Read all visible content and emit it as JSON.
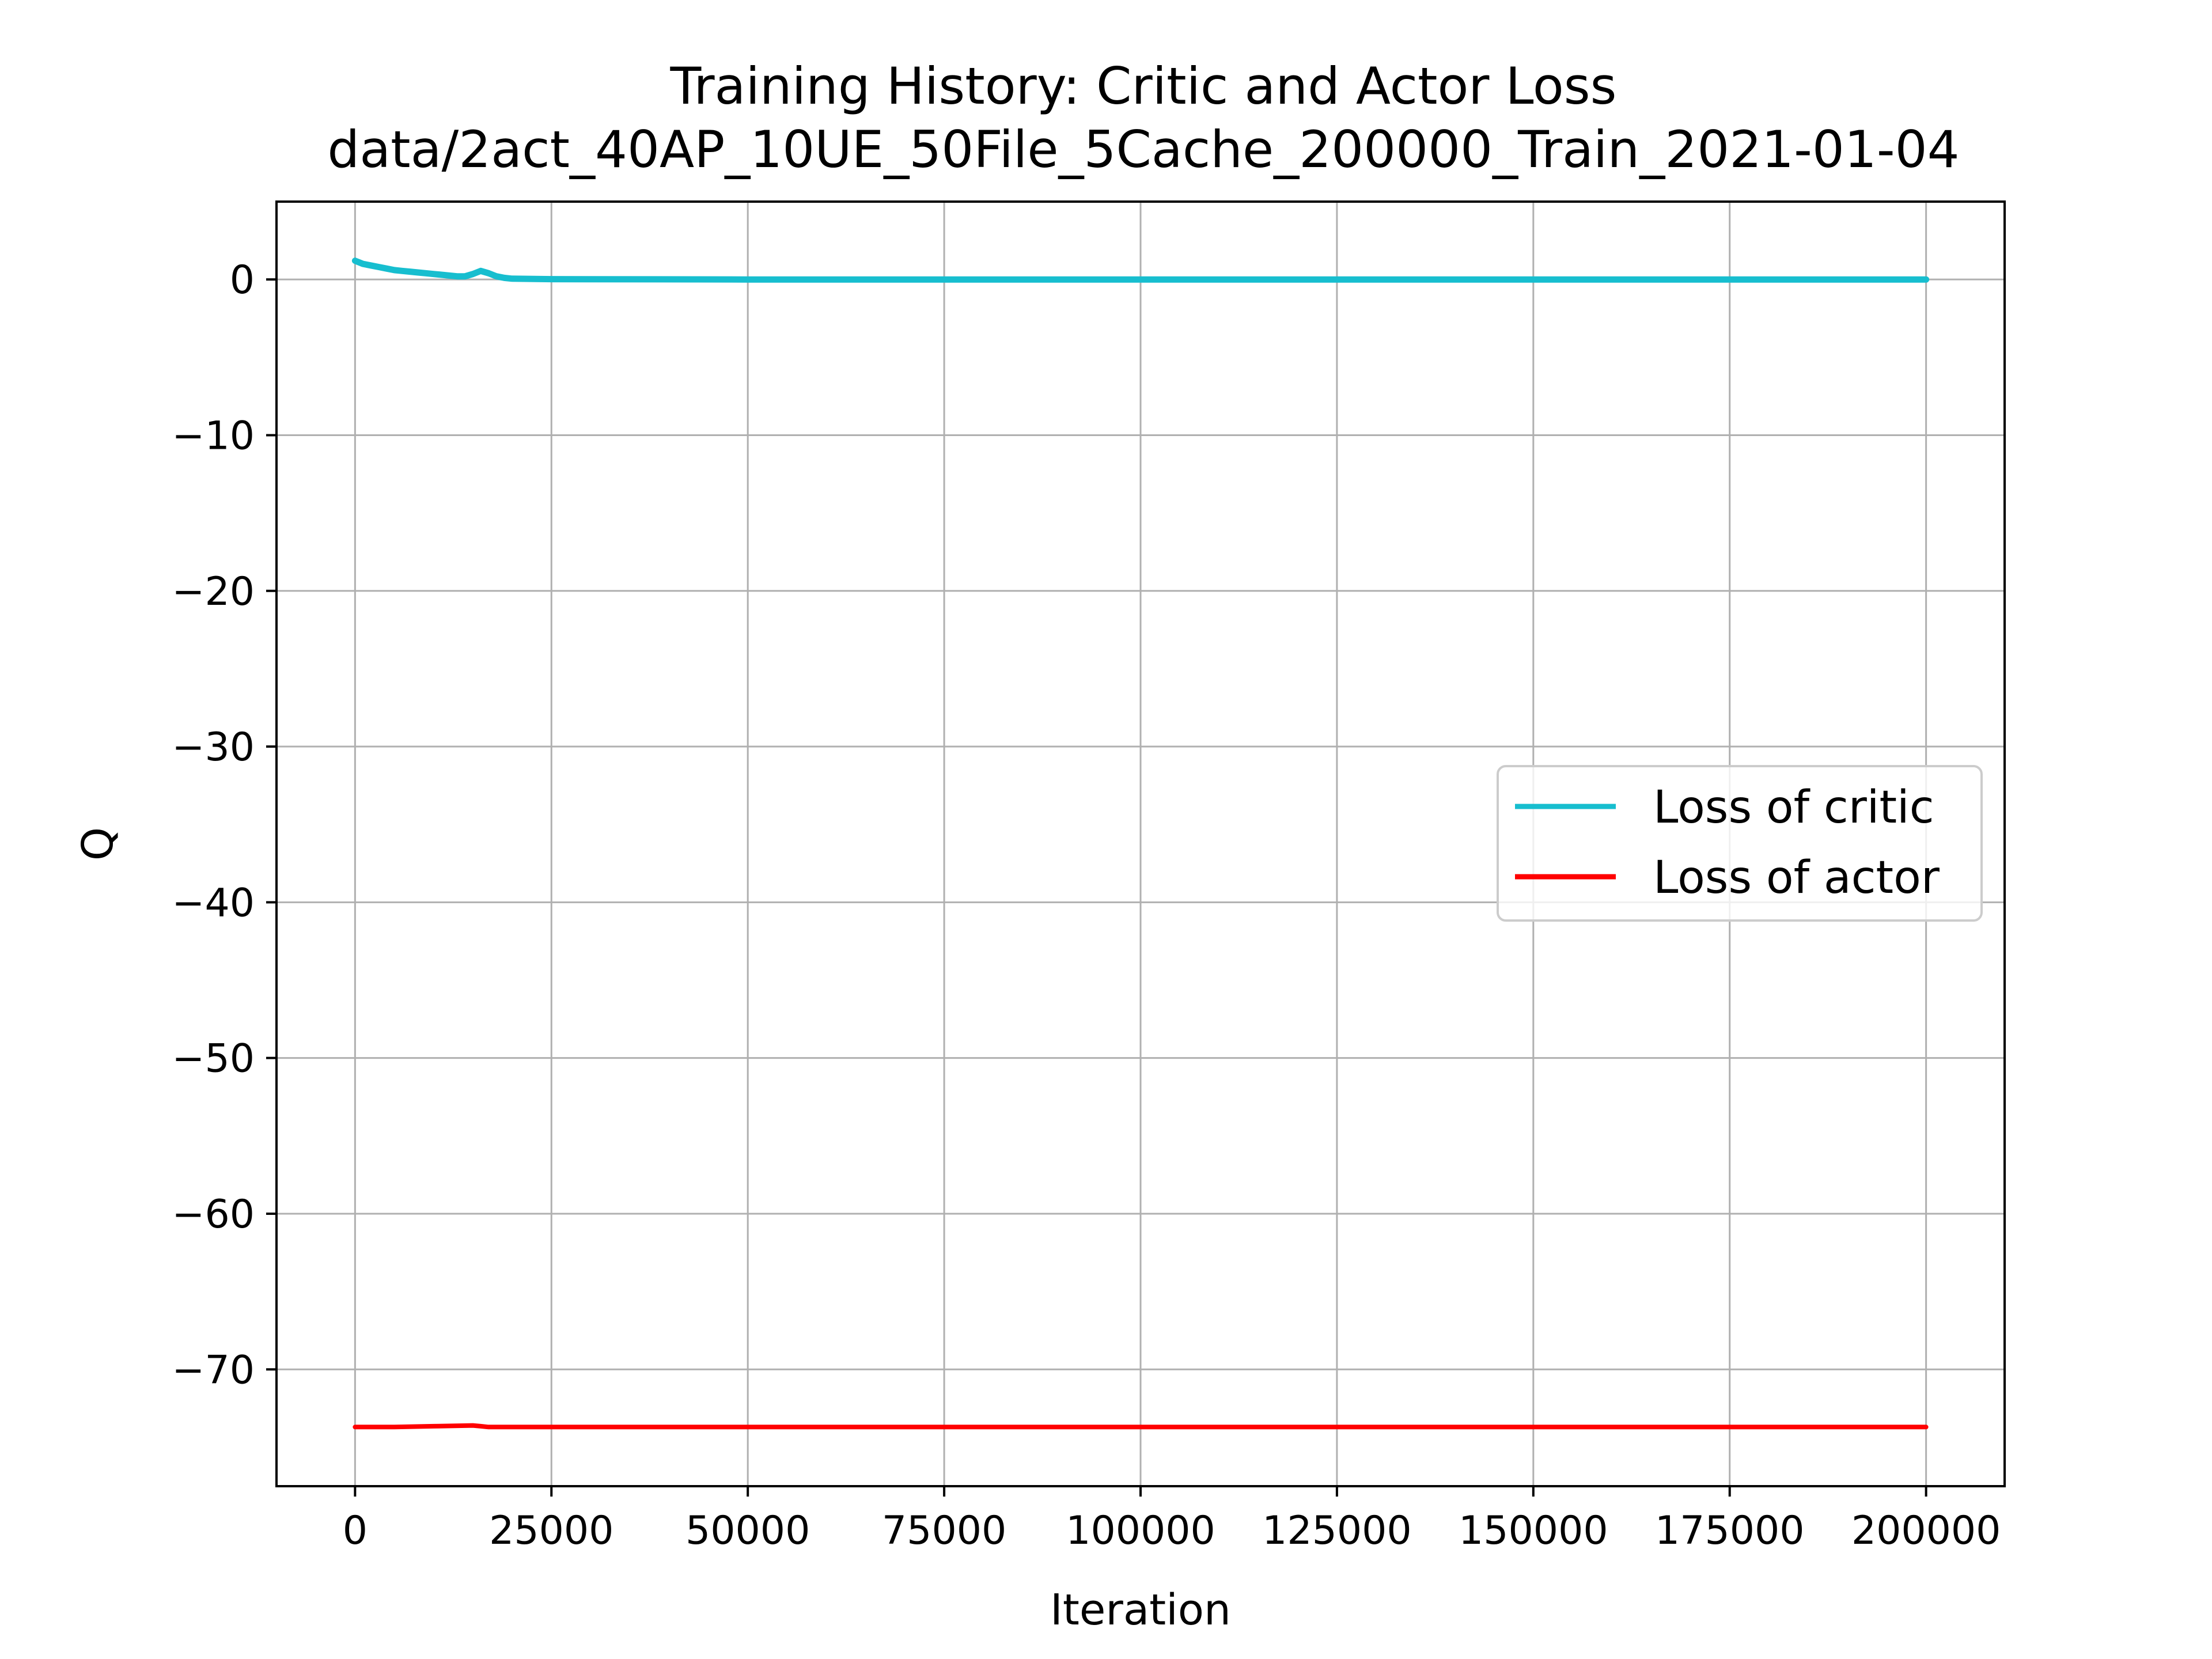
{
  "chart_data": {
    "type": "line",
    "title": "Training History: Critic and Actor Loss",
    "subtitle": "data/2act_40AP_10UE_50File_5Cache_200000_Train_2021-01-04",
    "xlabel": "Iteration",
    "ylabel": "Q",
    "xlim": [
      -10000,
      210000
    ],
    "ylim": [
      -77.5,
      5
    ],
    "xticks": [
      0,
      25000,
      50000,
      75000,
      100000,
      125000,
      150000,
      175000,
      200000
    ],
    "yticks": [
      0,
      -10,
      -20,
      -30,
      -40,
      -50,
      -60,
      -70
    ],
    "xtick_labels": [
      "0",
      "25000",
      "50000",
      "75000",
      "100000",
      "125000",
      "150000",
      "175000",
      "200000"
    ],
    "ytick_labels": [
      "0",
      "−10",
      "−20",
      "−30",
      "−40",
      "−50",
      "−60",
      "−70"
    ],
    "grid": true,
    "legend_position": "center-right",
    "series": [
      {
        "name": "Loss of critic",
        "color": "#17becf",
        "x": [
          0,
          500,
          1000,
          2000,
          3000,
          4000,
          5000,
          6000,
          7000,
          8000,
          9000,
          10000,
          11000,
          12000,
          13000,
          14000,
          15000,
          16000,
          17000,
          18000,
          19000,
          20000,
          25000,
          50000,
          75000,
          100000,
          125000,
          150000,
          175000,
          200000
        ],
        "y": [
          1.2,
          1.1,
          1.0,
          0.9,
          0.8,
          0.7,
          0.6,
          0.55,
          0.5,
          0.45,
          0.4,
          0.35,
          0.3,
          0.25,
          0.2,
          0.2,
          0.35,
          0.55,
          0.4,
          0.2,
          0.1,
          0.05,
          0.02,
          0.0,
          0.0,
          0.0,
          0.0,
          0.0,
          0.0,
          0.0
        ]
      },
      {
        "name": "Loss of actor",
        "color": "#ff0000",
        "x": [
          0,
          5000,
          10000,
          15000,
          16000,
          17000,
          20000,
          50000,
          100000,
          150000,
          200000
        ],
        "y": [
          -73.7,
          -73.7,
          -73.65,
          -73.6,
          -73.65,
          -73.7,
          -73.7,
          -73.7,
          -73.7,
          -73.7,
          -73.7
        ]
      }
    ]
  }
}
